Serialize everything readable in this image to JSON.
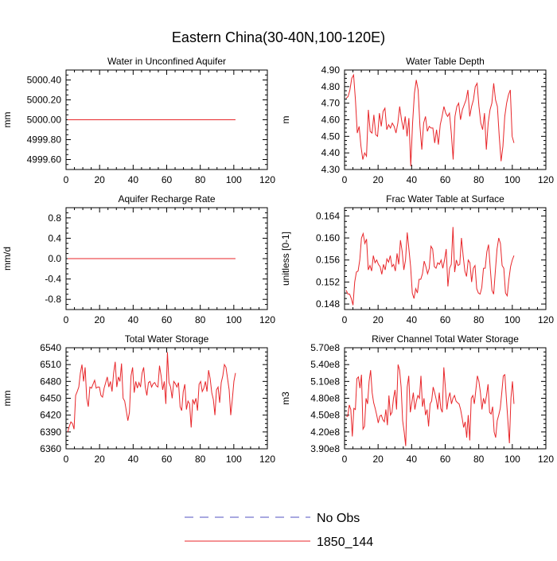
{
  "figure": {
    "title": "Eastern China(30-40N,100-120E)"
  },
  "legend": {
    "items": [
      {
        "label": "No Obs",
        "style": "dashed",
        "color": "#5050c0"
      },
      {
        "label": "1850_144",
        "style": "solid",
        "color": "#e8262a"
      }
    ]
  },
  "chart_data": [
    {
      "type": "line",
      "title": "Water in Unconfined Aquifer",
      "xlabel": "",
      "ylabel": "mm",
      "xlim": [
        0,
        120
      ],
      "ylim": [
        4999.5,
        5000.5
      ],
      "xticks": [
        0,
        20,
        40,
        60,
        80,
        100,
        120
      ],
      "yticks": [
        4999.6,
        4999.8,
        5000.0,
        5000.2,
        5000.4
      ],
      "ytick_labels": [
        "4999.60",
        "4999.80",
        "5000.00",
        "5000.20",
        "5000.40"
      ],
      "series": [
        {
          "name": "1850_144",
          "color": "#e8262a",
          "y": [
            5000,
            5000,
            5000,
            5000,
            5000,
            5000,
            5000,
            5000,
            5000,
            5000,
            5000,
            5000,
            5000,
            5000,
            5000,
            5000,
            5000,
            5000,
            5000,
            5000,
            5000,
            5000,
            5000,
            5000,
            5000,
            5000,
            5000,
            5000,
            5000,
            5000,
            5000,
            5000,
            5000,
            5000,
            5000,
            5000,
            5000,
            5000,
            5000,
            5000,
            5000,
            5000,
            5000,
            5000,
            5000,
            5000,
            5000,
            5000,
            5000,
            5000,
            5000,
            5000,
            5000,
            5000,
            5000,
            5000,
            5000,
            5000,
            5000,
            5000,
            5000,
            5000,
            5000,
            5000,
            5000,
            5000,
            5000,
            5000,
            5000,
            5000,
            5000,
            5000,
            5000,
            5000,
            5000,
            5000,
            5000,
            5000,
            5000,
            5000,
            5000,
            5000,
            5000,
            5000,
            5000,
            5000,
            5000,
            5000,
            5000,
            5000,
            5000,
            5000,
            5000,
            5000,
            5000,
            5000,
            5000,
            5000,
            5000,
            5000,
            5000
          ]
        }
      ]
    },
    {
      "type": "line",
      "title": "Water Table Depth",
      "xlabel": "",
      "ylabel": "m",
      "xlim": [
        0,
        120
      ],
      "ylim": [
        4.3,
        4.9
      ],
      "xticks": [
        0,
        20,
        40,
        60,
        80,
        100,
        120
      ],
      "yticks": [
        4.3,
        4.4,
        4.5,
        4.6,
        4.7,
        4.8,
        4.9
      ],
      "ytick_labels": [
        "4.30",
        "4.40",
        "4.50",
        "4.60",
        "4.70",
        "4.80",
        "4.90"
      ],
      "series": [
        {
          "name": "1850_144",
          "color": "#e8262a",
          "y": [
            4.73,
            4.74,
            4.78,
            4.85,
            4.87,
            4.72,
            4.52,
            4.56,
            4.44,
            4.36,
            4.4,
            4.38,
            4.66,
            4.53,
            4.52,
            4.63,
            4.51,
            4.5,
            4.64,
            4.56,
            4.65,
            4.67,
            4.54,
            4.57,
            4.55,
            4.58,
            4.56,
            4.52,
            4.58,
            4.68,
            4.6,
            4.54,
            4.62,
            4.5,
            4.61,
            4.32,
            4.58,
            4.76,
            4.84,
            4.78,
            4.56,
            4.42,
            4.58,
            4.62,
            4.53,
            4.56,
            4.55,
            4.55,
            4.46,
            4.54,
            4.45,
            4.57,
            4.62,
            4.68,
            4.64,
            4.62,
            4.64,
            4.52,
            4.36,
            4.62,
            4.68,
            4.7,
            4.6,
            4.66,
            4.69,
            4.72,
            4.78,
            4.62,
            4.68,
            4.72,
            4.8,
            4.82,
            4.68,
            4.58,
            4.54,
            4.64,
            4.42,
            4.58,
            4.66,
            4.7,
            4.82,
            4.72,
            4.68,
            4.5,
            4.35,
            4.44,
            4.62,
            4.7,
            4.75,
            4.78,
            4.5,
            4.46
          ]
        }
      ]
    },
    {
      "type": "line",
      "title": "Aquifer Recharge Rate",
      "xlabel": "",
      "ylabel": "mm/d",
      "xlim": [
        0,
        120
      ],
      "ylim": [
        -1.0,
        1.0
      ],
      "xticks": [
        0,
        20,
        40,
        60,
        80,
        100,
        120
      ],
      "yticks": [
        -0.8,
        -0.4,
        0.0,
        0.4,
        0.8
      ],
      "ytick_labels": [
        "-0.8",
        "-0.4",
        "0.0",
        "0.4",
        "0.8"
      ],
      "series": [
        {
          "name": "1850_144",
          "color": "#e8262a",
          "y": [
            0,
            0,
            0,
            0,
            0,
            0,
            0,
            0,
            0,
            0,
            0,
            0,
            0,
            0,
            0,
            0,
            0,
            0,
            0,
            0,
            0,
            0,
            0,
            0,
            0,
            0,
            0,
            0,
            0,
            0,
            0,
            0,
            0,
            0,
            0,
            0,
            0,
            0,
            0,
            0,
            0,
            0,
            0,
            0,
            0,
            0,
            0,
            0,
            0,
            0,
            0,
            0,
            0,
            0,
            0,
            0,
            0,
            0,
            0,
            0,
            0,
            0,
            0,
            0,
            0,
            0,
            0,
            0,
            0,
            0,
            0,
            0,
            0,
            0,
            0,
            0,
            0,
            0,
            0,
            0,
            0,
            0,
            0,
            0,
            0,
            0,
            0,
            0,
            0,
            0,
            0,
            0,
            0,
            0,
            0,
            0,
            0,
            0,
            0,
            0,
            0
          ]
        }
      ]
    },
    {
      "type": "line",
      "title": "Frac Water Table at Surface",
      "xlabel": "",
      "ylabel": "unitless [0-1]",
      "xlim": [
        0,
        120
      ],
      "ylim": [
        0.147,
        0.1655
      ],
      "xticks": [
        0,
        20,
        40,
        60,
        80,
        100,
        120
      ],
      "yticks": [
        0.148,
        0.152,
        0.156,
        0.16,
        0.164
      ],
      "ytick_labels": [
        "0.148",
        "0.152",
        "0.156",
        "0.160",
        "0.164"
      ],
      "series": [
        {
          "name": "1850_144",
          "color": "#e8262a",
          "y": [
            0.1505,
            0.1498,
            0.1498,
            0.149,
            0.1478,
            0.152,
            0.1538,
            0.154,
            0.156,
            0.16,
            0.1608,
            0.159,
            0.1598,
            0.1542,
            0.155,
            0.154,
            0.1568,
            0.1555,
            0.156,
            0.1552,
            0.1548,
            0.1534,
            0.1552,
            0.1542,
            0.1562,
            0.1556,
            0.1568,
            0.1548,
            0.1552,
            0.154,
            0.1572,
            0.1552,
            0.1596,
            0.1576,
            0.1542,
            0.156,
            0.161,
            0.158,
            0.1548,
            0.15,
            0.149,
            0.1508,
            0.15,
            0.1525,
            0.1525,
            0.1535,
            0.1558,
            0.1548,
            0.1535,
            0.1545,
            0.1585,
            0.158,
            0.1548,
            0.1545,
            0.1555,
            0.1552,
            0.156,
            0.1545,
            0.156,
            0.158,
            0.1512,
            0.1545,
            0.1552,
            0.162,
            0.1538,
            0.156,
            0.155,
            0.1552,
            0.16,
            0.1568,
            0.154,
            0.153,
            0.156,
            0.1555,
            0.152,
            0.1545,
            0.155,
            0.1508,
            0.15,
            0.1498,
            0.151,
            0.1545,
            0.1545,
            0.1575,
            0.1588,
            0.1545,
            0.1505,
            0.1498,
            0.154,
            0.158,
            0.16,
            0.159,
            0.155,
            0.1545,
            0.15,
            0.1495,
            0.1525,
            0.1548,
            0.156,
            0.1568
          ]
        }
      ]
    },
    {
      "type": "line",
      "title": "Total Water Storage",
      "xlabel": "",
      "ylabel": "mm",
      "xlim": [
        0,
        120
      ],
      "ylim": [
        6360,
        6540
      ],
      "xticks": [
        0,
        20,
        40,
        60,
        80,
        100,
        120
      ],
      "yticks": [
        6360,
        6390,
        6420,
        6450,
        6480,
        6510,
        6540
      ],
      "ytick_labels": [
        "6360",
        "6390",
        "6420",
        "6450",
        "6480",
        "6510",
        "6540"
      ],
      "series": [
        {
          "name": "1850_144",
          "color": "#e8262a",
          "y": [
            6390,
            6400,
            6408,
            6405,
            6395,
            6455,
            6462,
            6470,
            6495,
            6510,
            6480,
            6505,
            6450,
            6435,
            6470,
            6468,
            6475,
            6482,
            6468,
            6470,
            6470,
            6455,
            6452,
            6468,
            6478,
            6488,
            6470,
            6480,
            6462,
            6495,
            6515,
            6470,
            6488,
            6480,
            6512,
            6450,
            6445,
            6428,
            6410,
            6425,
            6490,
            6505,
            6460,
            6480,
            6468,
            6478,
            6470,
            6495,
            6505,
            6470,
            6455,
            6478,
            6480,
            6470,
            6476,
            6478,
            6472,
            6470,
            6508,
            6490,
            6465,
            6480,
            6440,
            6532,
            6478,
            6470,
            6450,
            6480,
            6476,
            6470,
            6478,
            6435,
            6428,
            6462,
            6475,
            6430,
            6445,
            6440,
            6398,
            6448,
            6440,
            6450,
            6428,
            6475,
            6480,
            6462,
            6468,
            6480,
            6462,
            6500,
            6485,
            6460,
            6448,
            6420,
            6465,
            6470,
            6442,
            6478,
            6490,
            6510,
            6505,
            6485,
            6465,
            6420,
            6448,
            6480,
            6495
          ]
        }
      ]
    },
    {
      "type": "line",
      "title": "River Channel Total Water Storage",
      "xlabel": "",
      "ylabel": "m3",
      "xlim": [
        0,
        120
      ],
      "ylim": [
        390000000.0,
        570000000.0
      ],
      "xticks": [
        0,
        20,
        40,
        60,
        80,
        100,
        120
      ],
      "yticks": [
        390000000.0,
        420000000.0,
        450000000.0,
        480000000.0,
        510000000.0,
        540000000.0,
        570000000.0
      ],
      "ytick_labels": [
        "3.90e8",
        "4.20e8",
        "4.50e8",
        "4.80e8",
        "5.10e8",
        "5.40e8",
        "5.70e8"
      ],
      "series": [
        {
          "name": "1850_144",
          "color": "#e8262a",
          "y": [
            448000000.0,
            448000000.0,
            468000000.0,
            460000000.0,
            412000000.0,
            462000000.0,
            460000000.0,
            515000000.0,
            518000000.0,
            498000000.0,
            522000000.0,
            425000000.0,
            430000000.0,
            480000000.0,
            470000000.0,
            510000000.0,
            530000000.0,
            490000000.0,
            472000000.0,
            462000000.0,
            450000000.0,
            436000000.0,
            448000000.0,
            450000000.0,
            442000000.0,
            438000000.0,
            460000000.0,
            432000000.0,
            485000000.0,
            450000000.0,
            455000000.0,
            480000000.0,
            495000000.0,
            460000000.0,
            540000000.0,
            530000000.0,
            500000000.0,
            440000000.0,
            420000000.0,
            395000000.0,
            500000000.0,
            520000000.0,
            455000000.0,
            472000000.0,
            490000000.0,
            460000000.0,
            475000000.0,
            485000000.0,
            480000000.0,
            520000000.0,
            465000000.0,
            480000000.0,
            450000000.0,
            460000000.0,
            430000000.0,
            470000000.0,
            475000000.0,
            500000000.0,
            490000000.0,
            478000000.0,
            460000000.0,
            490000000.0,
            462000000.0,
            455000000.0,
            535000000.0,
            500000000.0,
            460000000.0,
            480000000.0,
            490000000.0,
            470000000.0,
            480000000.0,
            485000000.0,
            475000000.0,
            472000000.0,
            470000000.0,
            460000000.0,
            445000000.0,
            428000000.0,
            438000000.0,
            410000000.0,
            450000000.0,
            405000000.0,
            480000000.0,
            485000000.0,
            470000000.0,
            495000000.0,
            520000000.0,
            510000000.0,
            490000000.0,
            460000000.0,
            480000000.0,
            470000000.0,
            485000000.0,
            505000000.0,
            455000000.0,
            452000000.0,
            465000000.0,
            420000000.0,
            410000000.0,
            440000000.0,
            450000000.0,
            462000000.0,
            490000000.0,
            520000000.0,
            522000000.0,
            480000000.0,
            440000000.0,
            400000000.0,
            480000000.0,
            510000000.0,
            470000000.0
          ]
        }
      ]
    }
  ]
}
